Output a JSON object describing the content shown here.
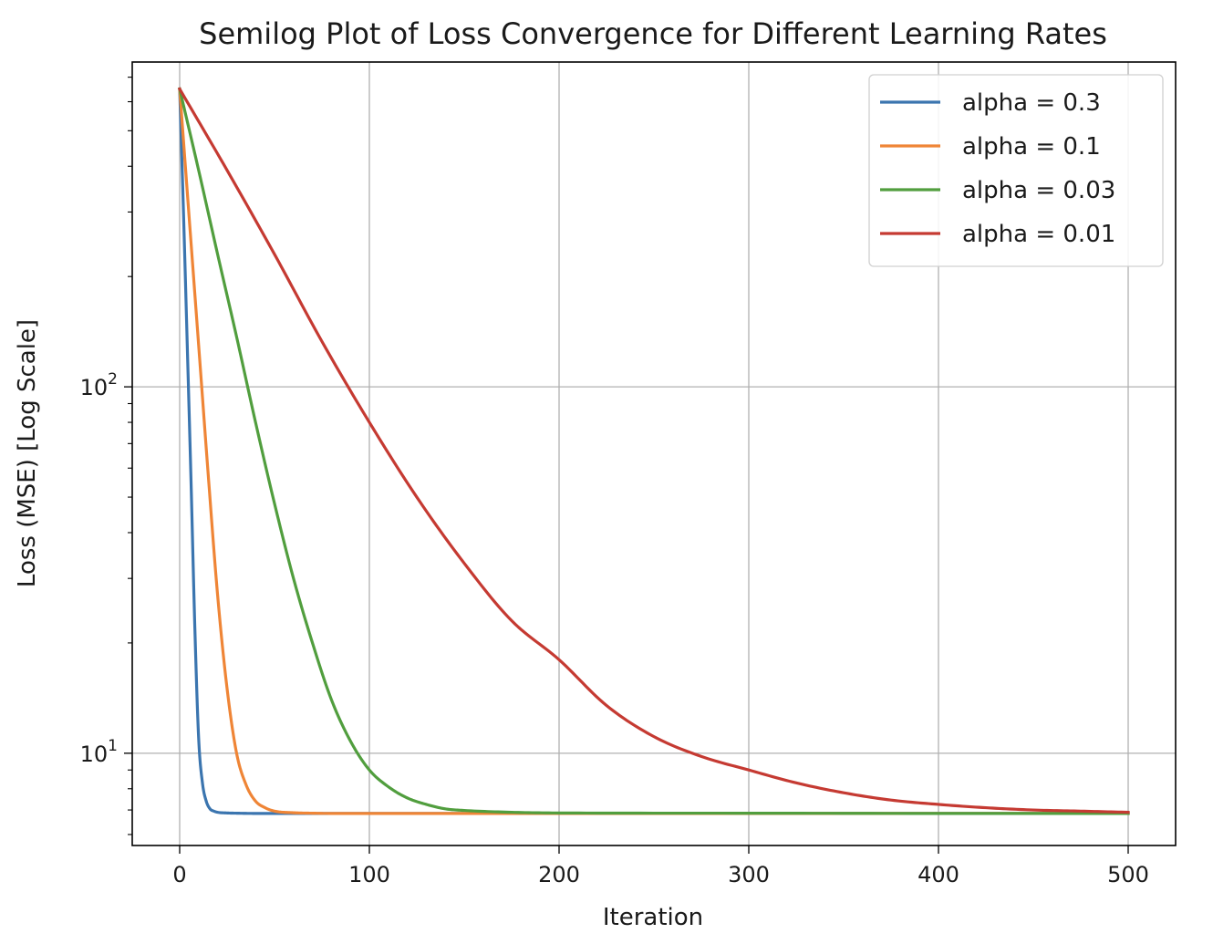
{
  "chart_data": {
    "type": "line",
    "title": "Semilog Plot of Loss Convergence for Different Learning Rates",
    "xlabel": "Iteration",
    "ylabel": "Loss (MSE) [Log Scale]",
    "xscale": "linear",
    "yscale": "log",
    "xlim": [
      -25,
      525
    ],
    "ylim": [
      5.6,
      770
    ],
    "x_ticks": [
      0,
      100,
      200,
      300,
      400,
      500
    ],
    "y_ticks": [
      {
        "value": 10,
        "base": "10",
        "exp": "1"
      },
      {
        "value": 100,
        "base": "10",
        "exp": "2"
      }
    ],
    "y_minor_ticks": [
      6,
      7,
      8,
      9,
      20,
      30,
      40,
      50,
      60,
      70,
      80,
      90,
      200,
      300,
      400,
      500,
      600,
      700
    ],
    "grid": true,
    "legend_position": "top-right",
    "series": [
      {
        "name": "alpha = 0.3",
        "color": "#3b75af",
        "x": [
          0,
          2,
          4,
          6,
          8,
          10,
          12,
          14,
          16,
          18,
          20,
          25,
          30,
          40,
          60,
          100,
          200,
          300,
          400,
          500
        ],
        "y": [
          650,
          300,
          130,
          55,
          22,
          11,
          8.3,
          7.4,
          7.05,
          6.95,
          6.9,
          6.87,
          6.86,
          6.85,
          6.85,
          6.85,
          6.85,
          6.85,
          6.85,
          6.85
        ]
      },
      {
        "name": "alpha = 0.1",
        "color": "#ef8536",
        "x": [
          0,
          5,
          10,
          15,
          20,
          25,
          30,
          35,
          40,
          45,
          50,
          60,
          70,
          80,
          100,
          200,
          300,
          400,
          500
        ],
        "y": [
          650,
          290,
          130,
          58,
          27,
          15,
          10,
          8.2,
          7.4,
          7.1,
          6.95,
          6.88,
          6.86,
          6.85,
          6.85,
          6.85,
          6.85,
          6.85,
          6.85
        ]
      },
      {
        "name": "alpha = 0.03",
        "color": "#519e3e",
        "x": [
          0,
          10,
          20,
          30,
          40,
          50,
          60,
          70,
          80,
          90,
          100,
          110,
          120,
          130,
          140,
          150,
          175,
          200,
          300,
          400,
          500
        ],
        "y": [
          650,
          390,
          230,
          137,
          80,
          48,
          30,
          20,
          14,
          10.8,
          9.0,
          8.1,
          7.55,
          7.25,
          7.05,
          6.98,
          6.9,
          6.87,
          6.86,
          6.85,
          6.85
        ]
      },
      {
        "name": "alpha = 0.01",
        "color": "#c53a32",
        "x": [
          0,
          25,
          50,
          75,
          100,
          125,
          150,
          175,
          200,
          225,
          250,
          275,
          300,
          325,
          350,
          375,
          400,
          425,
          450,
          475,
          500
        ],
        "y": [
          650,
          390,
          230,
          133,
          80,
          50,
          33,
          23,
          18,
          13.5,
          11.1,
          9.8,
          9.0,
          8.3,
          7.8,
          7.45,
          7.25,
          7.1,
          7.0,
          6.95,
          6.9
        ]
      }
    ]
  }
}
